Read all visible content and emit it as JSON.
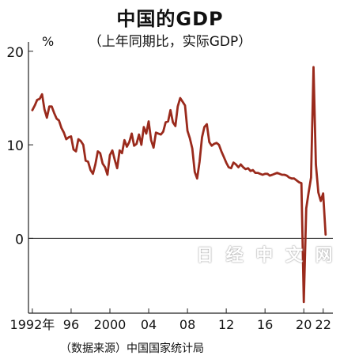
{
  "chart_data": {
    "type": "line",
    "title": "中国的GDP",
    "subtitle": "（上年同期比，实际GDP）",
    "unit_label": "%",
    "source": "（数据来源）中国国家统计局",
    "watermark": "日 经 中 文 网",
    "ylim": [
      -8,
      21
    ],
    "xlim": [
      1991.6,
      2023.0
    ],
    "yticks": [
      {
        "value": 20,
        "label": "20"
      },
      {
        "value": 10,
        "label": "10"
      },
      {
        "value": 0,
        "label": "0"
      }
    ],
    "xticks": [
      {
        "value": 1992,
        "label": "1992年"
      },
      {
        "value": 1996,
        "label": "96"
      },
      {
        "value": 2000,
        "label": "2000"
      },
      {
        "value": 2004,
        "label": "04"
      },
      {
        "value": 2008,
        "label": "08"
      },
      {
        "value": 2012,
        "label": "12"
      },
      {
        "value": 2016,
        "label": "16"
      },
      {
        "value": 2020,
        "label": "20"
      },
      {
        "value": 2022,
        "label": "22"
      }
    ],
    "grid": false,
    "series": [
      {
        "color": "#9a2a1c",
        "x": [
          1992.0,
          1992.25,
          1992.5,
          1992.75,
          1993.0,
          1993.25,
          1993.5,
          1993.75,
          1994.0,
          1994.25,
          1994.5,
          1994.75,
          1995.0,
          1995.25,
          1995.5,
          1995.75,
          1996.0,
          1996.25,
          1996.5,
          1996.75,
          1997.0,
          1997.25,
          1997.5,
          1997.75,
          1998.0,
          1998.25,
          1998.5,
          1998.75,
          1999.0,
          1999.25,
          1999.5,
          1999.75,
          2000.0,
          2000.25,
          2000.5,
          2000.75,
          2001.0,
          2001.25,
          2001.5,
          2001.75,
          2002.0,
          2002.25,
          2002.5,
          2002.75,
          2003.0,
          2003.25,
          2003.5,
          2003.75,
          2004.0,
          2004.25,
          2004.5,
          2004.75,
          2005.0,
          2005.25,
          2005.5,
          2005.75,
          2006.0,
          2006.25,
          2006.5,
          2006.75,
          2007.0,
          2007.25,
          2007.5,
          2007.75,
          2008.0,
          2008.25,
          2008.5,
          2008.75,
          2009.0,
          2009.25,
          2009.5,
          2009.75,
          2010.0,
          2010.25,
          2010.5,
          2010.75,
          2011.0,
          2011.25,
          2011.5,
          2011.75,
          2012.0,
          2012.25,
          2012.5,
          2012.75,
          2013.0,
          2013.25,
          2013.5,
          2013.75,
          2014.0,
          2014.25,
          2014.5,
          2014.75,
          2015.0,
          2015.25,
          2015.5,
          2015.75,
          2016.0,
          2016.25,
          2016.5,
          2016.75,
          2017.0,
          2017.25,
          2017.5,
          2017.75,
          2018.0,
          2018.25,
          2018.5,
          2018.75,
          2019.0,
          2019.25,
          2019.5,
          2019.75,
          2020.0,
          2020.25,
          2020.5,
          2020.75,
          2021.0,
          2021.25,
          2021.5,
          2021.75,
          2022.0,
          2022.25
        ],
        "values": [
          13.7,
          14.2,
          14.8,
          14.9,
          15.4,
          13.8,
          12.9,
          14.1,
          14.1,
          13.4,
          12.8,
          12.6,
          11.8,
          11.3,
          10.6,
          10.8,
          10.9,
          9.5,
          9.3,
          10.6,
          10.4,
          10.0,
          8.3,
          8.2,
          7.3,
          6.9,
          7.9,
          9.3,
          9.1,
          8.0,
          7.6,
          6.8,
          8.9,
          9.4,
          8.4,
          7.5,
          9.4,
          9.1,
          10.5,
          9.8,
          10.3,
          11.2,
          9.9,
          10.1,
          11.1,
          10.0,
          11.9,
          11.2,
          12.5,
          10.5,
          9.7,
          11.3,
          11.2,
          11.1,
          11.4,
          12.4,
          12.5,
          13.7,
          12.4,
          12.0,
          14.1,
          15.0,
          14.6,
          14.2,
          11.5,
          10.7,
          9.6,
          7.1,
          6.4,
          8.2,
          10.8,
          11.9,
          12.2,
          10.3,
          9.9,
          10.1,
          10.2,
          10.0,
          9.3,
          8.7,
          8.1,
          7.6,
          7.5,
          8.1,
          7.9,
          7.6,
          7.9,
          7.6,
          7.4,
          7.5,
          7.2,
          7.3,
          7.0,
          7.0,
          6.9,
          6.8,
          6.9,
          6.9,
          6.7,
          6.8,
          6.9,
          7.0,
          6.9,
          6.8,
          6.8,
          6.7,
          6.5,
          6.4,
          6.4,
          6.2,
          6.0,
          5.9,
          -6.8,
          3.2,
          4.9,
          6.5,
          18.3,
          7.9,
          4.9,
          4.0,
          4.8,
          0.4
        ]
      }
    ]
  }
}
